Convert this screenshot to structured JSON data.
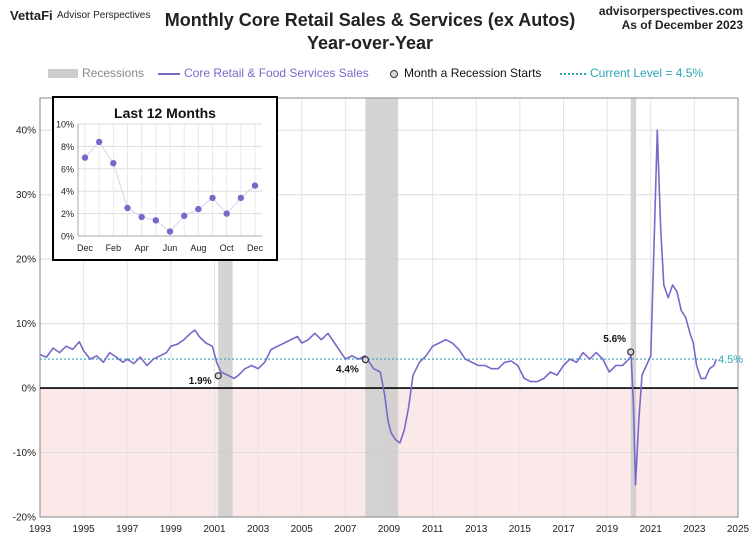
{
  "header": {
    "logo": "VettaFi",
    "logo_sub": "Advisor Perspectives",
    "source": "advisorperspectives.com",
    "as_of": "As of December 2023"
  },
  "colors": {
    "series": "#7a68c9",
    "recession": "#cccccc",
    "negative_fill": "#fbe8e8",
    "current_level": "#2aa6b8"
  },
  "legend": {
    "recessions": "Recessions",
    "series": "Core Retail & Food Services Sales",
    "recession_start": "Month a Recession Starts",
    "current": "Current Level = 4.5%"
  },
  "chart_data": [
    {
      "type": "line",
      "title": "Monthly Core Retail Sales & Services (ex Autos)",
      "subtitle": "Year-over-Year",
      "xlim": [
        1993,
        2025
      ],
      "ylim": [
        -20,
        45
      ],
      "x_ticks": [
        "1993",
        "1995",
        "1997",
        "1999",
        "2001",
        "2003",
        "2005",
        "2007",
        "2009",
        "2011",
        "2013",
        "2015",
        "2017",
        "2019",
        "2021",
        "2023",
        "2025"
      ],
      "y_ticks": [
        "-20%",
        "-10%",
        "0%",
        "10%",
        "20%",
        "30%",
        "40%"
      ],
      "y_tick_values": [
        -20,
        -10,
        0,
        10,
        20,
        30,
        40
      ],
      "recessions": [
        [
          2001.17,
          2001.83
        ],
        [
          2007.92,
          2009.42
        ],
        [
          2020.08,
          2020.33
        ]
      ],
      "current_level": 4.5,
      "current_label": "4.5%",
      "recession_start_points": [
        {
          "x": 2001.17,
          "y": 1.9,
          "label": "1.9%"
        },
        {
          "x": 2007.92,
          "y": 4.4,
          "label": "4.4%"
        },
        {
          "x": 2020.08,
          "y": 5.6,
          "label": "5.6%"
        }
      ],
      "series": [
        {
          "name": "Core Retail & Food Services Sales",
          "points": [
            [
              1993.0,
              5.2
            ],
            [
              1993.3,
              4.8
            ],
            [
              1993.6,
              6.2
            ],
            [
              1993.9,
              5.5
            ],
            [
              1994.2,
              6.5
            ],
            [
              1994.5,
              6.0
            ],
            [
              1994.8,
              7.2
            ],
            [
              1995.0,
              5.8
            ],
            [
              1995.3,
              4.5
            ],
            [
              1995.6,
              5.0
            ],
            [
              1995.9,
              4.0
            ],
            [
              1996.2,
              5.5
            ],
            [
              1996.5,
              4.8
            ],
            [
              1996.8,
              4.0
            ],
            [
              1997.0,
              4.5
            ],
            [
              1997.3,
              3.8
            ],
            [
              1997.6,
              4.8
            ],
            [
              1997.9,
              3.5
            ],
            [
              1998.2,
              4.5
            ],
            [
              1998.5,
              5.0
            ],
            [
              1998.8,
              5.5
            ],
            [
              1999.0,
              6.5
            ],
            [
              1999.3,
              6.8
            ],
            [
              1999.6,
              7.5
            ],
            [
              1999.9,
              8.5
            ],
            [
              2000.1,
              9.0
            ],
            [
              2000.3,
              8.0
            ],
            [
              2000.6,
              7.0
            ],
            [
              2000.9,
              6.5
            ],
            [
              2001.1,
              4.0
            ],
            [
              2001.3,
              2.5
            ],
            [
              2001.6,
              2.0
            ],
            [
              2001.9,
              1.5
            ],
            [
              2002.1,
              2.0
            ],
            [
              2002.4,
              3.0
            ],
            [
              2002.7,
              3.5
            ],
            [
              2003.0,
              3.0
            ],
            [
              2003.3,
              4.0
            ],
            [
              2003.6,
              6.0
            ],
            [
              2003.9,
              6.5
            ],
            [
              2004.2,
              7.0
            ],
            [
              2004.5,
              7.5
            ],
            [
              2004.8,
              8.0
            ],
            [
              2005.0,
              7.0
            ],
            [
              2005.3,
              7.5
            ],
            [
              2005.6,
              8.5
            ],
            [
              2005.9,
              7.5
            ],
            [
              2006.2,
              8.5
            ],
            [
              2006.5,
              7.0
            ],
            [
              2006.8,
              5.5
            ],
            [
              2007.0,
              4.5
            ],
            [
              2007.3,
              5.0
            ],
            [
              2007.6,
              4.5
            ],
            [
              2007.9,
              5.0
            ],
            [
              2008.1,
              4.0
            ],
            [
              2008.3,
              3.0
            ],
            [
              2008.6,
              2.5
            ],
            [
              2008.8,
              -1.0
            ],
            [
              2008.95,
              -5.0
            ],
            [
              2009.1,
              -7.0
            ],
            [
              2009.3,
              -8.0
            ],
            [
              2009.5,
              -8.5
            ],
            [
              2009.7,
              -6.5
            ],
            [
              2009.9,
              -3.0
            ],
            [
              2010.1,
              2.0
            ],
            [
              2010.4,
              4.0
            ],
            [
              2010.7,
              5.0
            ],
            [
              2011.0,
              6.5
            ],
            [
              2011.3,
              7.0
            ],
            [
              2011.6,
              7.5
            ],
            [
              2011.9,
              7.0
            ],
            [
              2012.2,
              6.0
            ],
            [
              2012.5,
              4.5
            ],
            [
              2012.8,
              4.0
            ],
            [
              2013.1,
              3.5
            ],
            [
              2013.4,
              3.5
            ],
            [
              2013.7,
              3.0
            ],
            [
              2014.0,
              3.0
            ],
            [
              2014.3,
              4.0
            ],
            [
              2014.6,
              4.2
            ],
            [
              2014.9,
              3.5
            ],
            [
              2015.2,
              1.5
            ],
            [
              2015.5,
              1.0
            ],
            [
              2015.8,
              1.0
            ],
            [
              2016.1,
              1.5
            ],
            [
              2016.4,
              2.5
            ],
            [
              2016.7,
              2.0
            ],
            [
              2017.0,
              3.5
            ],
            [
              2017.3,
              4.5
            ],
            [
              2017.6,
              4.0
            ],
            [
              2017.9,
              5.5
            ],
            [
              2018.2,
              4.5
            ],
            [
              2018.5,
              5.5
            ],
            [
              2018.8,
              4.5
            ],
            [
              2019.1,
              2.5
            ],
            [
              2019.4,
              3.5
            ],
            [
              2019.7,
              3.5
            ],
            [
              2020.0,
              4.5
            ],
            [
              2020.1,
              5.0
            ],
            [
              2020.2,
              -2.0
            ],
            [
              2020.3,
              -15.0
            ],
            [
              2020.45,
              -5.0
            ],
            [
              2020.6,
              2.0
            ],
            [
              2020.8,
              3.5
            ],
            [
              2021.0,
              5.0
            ],
            [
              2021.15,
              22.0
            ],
            [
              2021.3,
              40.0
            ],
            [
              2021.45,
              25.0
            ],
            [
              2021.6,
              16.0
            ],
            [
              2021.8,
              14.0
            ],
            [
              2022.0,
              16.0
            ],
            [
              2022.2,
              15.0
            ],
            [
              2022.4,
              12.0
            ],
            [
              2022.6,
              11.0
            ],
            [
              2022.8,
              8.5
            ],
            [
              2022.95,
              7.0
            ],
            [
              2023.1,
              3.5
            ],
            [
              2023.3,
              1.5
            ],
            [
              2023.5,
              1.5
            ],
            [
              2023.7,
              3.0
            ],
            [
              2023.9,
              3.5
            ],
            [
              2024.0,
              4.5
            ]
          ]
        }
      ]
    },
    {
      "type": "line",
      "title": "Last 12 Months",
      "ylim": [
        0,
        10
      ],
      "y_ticks": [
        "0%",
        "2%",
        "4%",
        "6%",
        "8%",
        "10%"
      ],
      "y_tick_values": [
        0,
        2,
        4,
        6,
        8,
        10
      ],
      "categories": [
        "Dec",
        "Jan",
        "Feb",
        "Mar",
        "Apr",
        "May",
        "Jun",
        "Jul",
        "Aug",
        "Sep",
        "Oct",
        "Nov",
        "Dec"
      ],
      "x_tick_labels": [
        "Dec",
        "Feb",
        "Apr",
        "Jun",
        "Aug",
        "Oct",
        "Dec"
      ],
      "values": [
        7.0,
        8.4,
        6.5,
        2.5,
        1.7,
        1.4,
        0.4,
        1.8,
        2.4,
        3.4,
        2.0,
        3.4,
        4.5
      ]
    }
  ]
}
